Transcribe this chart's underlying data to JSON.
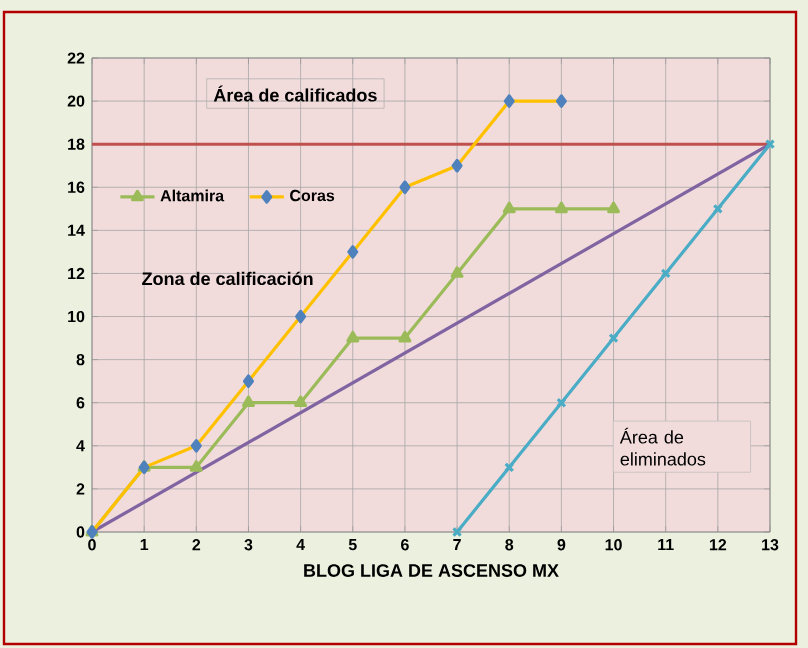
{
  "chart_data": {
    "type": "line",
    "xlabel": "BLOG LIGA DE ASCENSO MX",
    "xlim": [
      0,
      13
    ],
    "xticks": [
      0,
      1,
      2,
      3,
      4,
      5,
      6,
      7,
      8,
      9,
      10,
      11,
      12,
      13
    ],
    "ylim": [
      0,
      22
    ],
    "yticks": [
      0,
      2,
      4,
      6,
      8,
      10,
      12,
      14,
      16,
      18,
      20,
      22
    ],
    "grid": true,
    "legend": "top left",
    "series": [
      {
        "name": "Coras",
        "color": "#ffc000",
        "marker": "diamond",
        "x": [
          0,
          1,
          2,
          3,
          4,
          5,
          6,
          7,
          8,
          9
        ],
        "values": [
          0,
          3,
          4,
          7,
          10,
          13,
          16,
          17,
          20,
          20
        ]
      },
      {
        "name": "Altamira",
        "color": "#9bbb59",
        "marker": "triangle",
        "x": [
          0,
          1,
          2,
          3,
          4,
          5,
          6,
          7,
          8,
          9,
          10
        ],
        "values": [
          0,
          3,
          3,
          6,
          6,
          9,
          9,
          12,
          15,
          15,
          15
        ]
      },
      {
        "color": "#8064a2",
        "marker": "none",
        "x": [
          0,
          13
        ],
        "values": [
          0,
          18
        ]
      },
      {
        "color": "#4bacc6",
        "marker": "cross",
        "x": [
          7,
          8,
          9,
          10,
          11,
          12,
          13
        ],
        "values": [
          0,
          3,
          6,
          9,
          12,
          15,
          18
        ]
      }
    ],
    "ref_lines": [
      {
        "axis": "y",
        "value": 18,
        "color": "#c0504d"
      }
    ],
    "annotations": [
      "Área de calificados",
      "Zona de calificación",
      "Área de eliminados"
    ]
  }
}
